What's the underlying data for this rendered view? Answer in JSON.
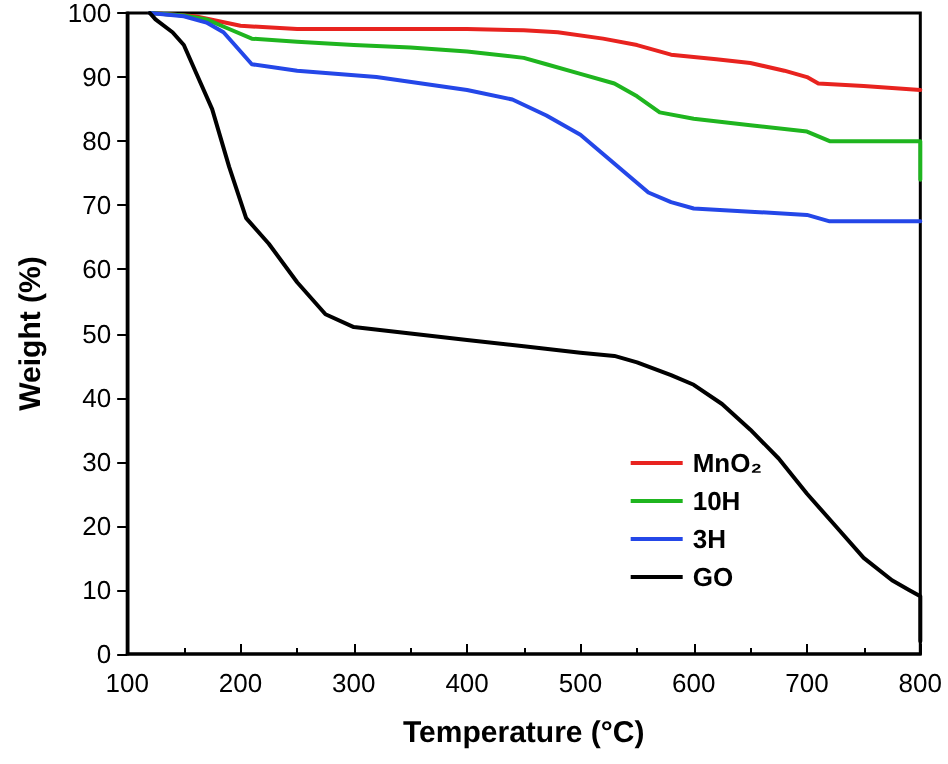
{
  "chart_data": {
    "type": "line",
    "xlabel": "Temperature (°C)",
    "ylabel": "Weight (%)",
    "xlim": [
      100,
      800
    ],
    "xticks": [
      100,
      200,
      300,
      400,
      500,
      600,
      700,
      800
    ],
    "ylim": [
      0,
      100
    ],
    "yticks": [
      0,
      10,
      20,
      30,
      40,
      50,
      60,
      70,
      80,
      90,
      100
    ],
    "grid": false,
    "legend": "bottom right",
    "marker": "none",
    "line_style": "solid",
    "series": [
      {
        "name": "MnO₂",
        "color": "#e8231f",
        "x": [
          120,
          160,
          200,
          250,
          300,
          400,
          450,
          480,
          520,
          550,
          580,
          620,
          650,
          680,
          700,
          710,
          750,
          800
        ],
        "values": [
          100,
          99.5,
          98,
          97.5,
          97.5,
          97.5,
          97.3,
          97,
          96,
          95,
          93.5,
          92.8,
          92.2,
          91,
          90,
          89,
          88.6,
          88
        ]
      },
      {
        "name": "10H",
        "color": "#1fb51f",
        "x": [
          120,
          150,
          170,
          190,
          210,
          250,
          300,
          350,
          400,
          450,
          470,
          500,
          530,
          550,
          570,
          600,
          650,
          700,
          720,
          750,
          800,
          800
        ],
        "values": [
          100,
          99.6,
          99,
          97.5,
          96,
          95.5,
          95,
          94.6,
          94,
          93,
          92,
          90.5,
          89,
          87,
          84.5,
          83.5,
          82.5,
          81.5,
          80,
          80,
          80,
          74
        ]
      },
      {
        "name": "3H",
        "color": "#2447e8",
        "x": [
          120,
          150,
          170,
          185,
          195,
          210,
          250,
          320,
          400,
          440,
          470,
          500,
          520,
          540,
          560,
          580,
          600,
          650,
          700,
          720,
          750,
          800
        ],
        "values": [
          100,
          99.5,
          98.5,
          97,
          95,
          92,
          91,
          90,
          88,
          86.5,
          84,
          81,
          78,
          75,
          72,
          70.5,
          69.5,
          69,
          68.5,
          67.5,
          67.5,
          67.5
        ]
      },
      {
        "name": "GO",
        "color": "#000000",
        "x": [
          120,
          125,
          140,
          150,
          160,
          175,
          190,
          205,
          225,
          250,
          275,
          300,
          350,
          400,
          450,
          500,
          530,
          550,
          580,
          600,
          625,
          650,
          675,
          700,
          725,
          750,
          775,
          790,
          800,
          800
        ],
        "values": [
          100,
          99,
          97,
          95,
          91,
          85,
          76,
          68,
          64,
          58,
          53,
          51,
          50,
          49,
          48,
          47,
          46.5,
          45.5,
          43.5,
          42,
          39,
          35,
          30.5,
          25,
          20,
          15,
          11.5,
          10,
          9,
          2
        ]
      }
    ]
  }
}
